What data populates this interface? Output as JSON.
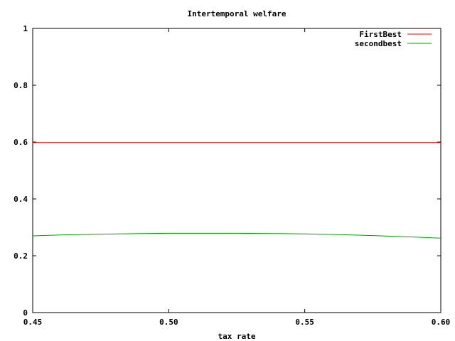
{
  "chart_data": {
    "type": "line",
    "title": "Intertemporal welfare",
    "xlabel": "tax rate",
    "ylabel": "",
    "xlim": [
      0.45,
      0.6
    ],
    "ylim": [
      0,
      1
    ],
    "xticks": [
      "0.45",
      "0.50",
      "0.55",
      "0.60"
    ],
    "xtick_values": [
      0.45,
      0.5,
      0.55,
      0.6
    ],
    "yticks": [
      "0",
      "0.2",
      "0.4",
      "0.6",
      "0.8",
      "1"
    ],
    "ytick_values": [
      0,
      0.2,
      0.4,
      0.6,
      0.8,
      1
    ],
    "grid": false,
    "legend_position": "top-right",
    "series": [
      {
        "name": "FirstBest",
        "color": "#ff0000",
        "x": [
          0.45,
          0.6
        ],
        "y": [
          0.598,
          0.598
        ]
      },
      {
        "name": "secondbest",
        "color": "#00a000",
        "x": [
          0.45,
          0.46,
          0.475,
          0.49,
          0.5,
          0.51,
          0.525,
          0.54,
          0.55,
          0.56,
          0.575,
          0.59,
          0.6
        ],
        "y": [
          0.27,
          0.273,
          0.276,
          0.278,
          0.279,
          0.279,
          0.279,
          0.278,
          0.277,
          0.275,
          0.271,
          0.266,
          0.262
        ]
      }
    ]
  }
}
